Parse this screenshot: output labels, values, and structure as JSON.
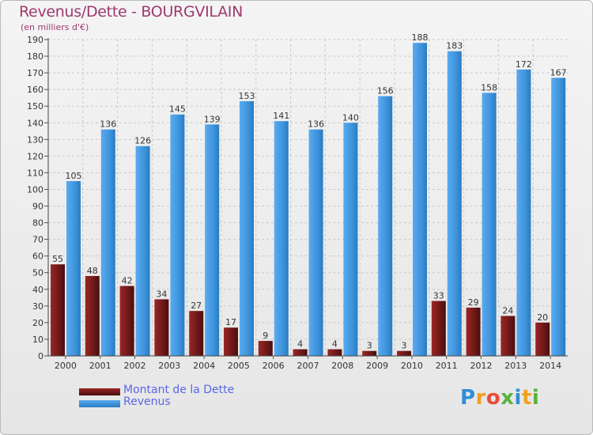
{
  "title": "Revenus/Dette - BOURGVILAIN",
  "subtitle": "(en milliers d'€)",
  "chart_data": {
    "type": "bar",
    "title": "Revenus/Dette - BOURGVILAIN",
    "ylabel": "(en milliers d'€)",
    "xlabel": "",
    "ylim": [
      0,
      190
    ],
    "y_ticks": [
      0,
      10,
      20,
      30,
      40,
      50,
      60,
      70,
      80,
      90,
      100,
      110,
      120,
      130,
      140,
      150,
      160,
      170,
      180,
      190
    ],
    "grid": true,
    "categories": [
      "2000",
      "2001",
      "2002",
      "2003",
      "2004",
      "2005",
      "2006",
      "2007",
      "2008",
      "2009",
      "2010",
      "2011",
      "2012",
      "2013",
      "2014"
    ],
    "series": [
      {
        "name": "Montant de la Dette",
        "color": "#7a1f1f",
        "values": [
          55,
          48,
          42,
          34,
          27,
          17,
          9,
          4,
          4,
          3,
          3,
          33,
          29,
          24,
          20
        ]
      },
      {
        "name": "Revenus",
        "color": "#3d94dc",
        "values": [
          105,
          136,
          126,
          145,
          139,
          153,
          141,
          136,
          140,
          156,
          188,
          183,
          158,
          172,
          167
        ]
      }
    ]
  },
  "legend": {
    "debt_label": "Montant de la Dette",
    "revenue_label": "Revenus"
  },
  "logo": {
    "text_p": "P",
    "text_r": "r",
    "text_o": "o",
    "text_x": "x",
    "text_i": "i",
    "text_t": "t",
    "text_i2": "i"
  }
}
